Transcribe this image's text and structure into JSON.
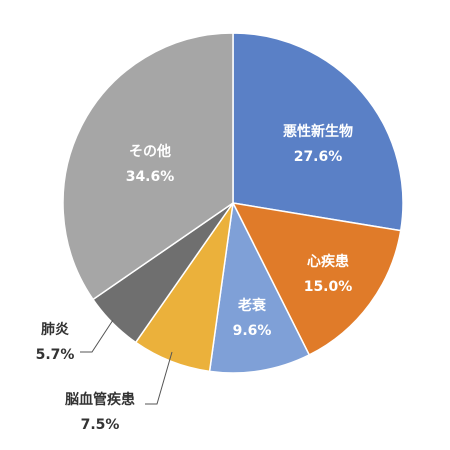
{
  "chart_data": {
    "type": "pie",
    "categories": [
      "悪性新生物",
      "心疾患",
      "老衰",
      "脳血管疾患",
      "肺炎",
      "その他"
    ],
    "values": [
      27.6,
      15.0,
      9.6,
      7.5,
      5.7,
      34.6
    ],
    "value_labels": [
      "27.6%",
      "15.0%",
      "9.6%",
      "7.5%",
      "5.7%",
      "34.6%"
    ],
    "colors": [
      "#5a80c6",
      "#e07b29",
      "#7fa0d7",
      "#ebb13b",
      "#6f6f6f",
      "#a6a6a6"
    ]
  }
}
